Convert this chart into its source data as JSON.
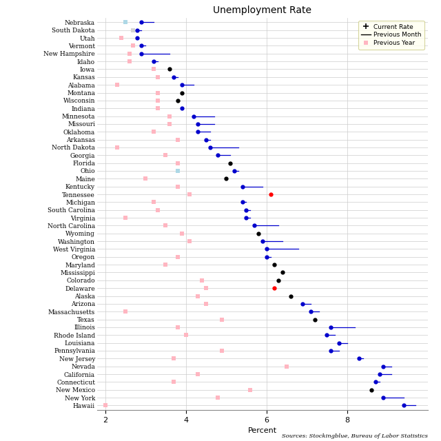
{
  "title": "Unemployment Rate",
  "xlabel": "Percent",
  "source": "Sources: Stockingblue, Bureau of Labor Statistics",
  "states": [
    "Nebraska",
    "South Dakota",
    "Utah",
    "Vermont",
    "New Hampshire",
    "Idaho",
    "Iowa",
    "Kansas",
    "Alabama",
    "Montana",
    "Wisconsin",
    "Indiana",
    "Minnesota",
    "Missouri",
    "Oklahoma",
    "Arkansas",
    "North Dakota",
    "Georgia",
    "Florida",
    "Ohio",
    "Maine",
    "Kentucky",
    "Tennessee",
    "Michigan",
    "South Carolina",
    "Virginia",
    "North Carolina",
    "Wyoming",
    "Washington",
    "West Virginia",
    "Oregon",
    "Maryland",
    "Mississippi",
    "Colorado",
    "Delaware",
    "Alaska",
    "Arizona",
    "Massachusetts",
    "Texas",
    "Illinois",
    "Rhode Island",
    "Louisiana",
    "Pennsylvania",
    "New Jersey",
    "Nevada",
    "California",
    "Connecticut",
    "New Mexico",
    "New York",
    "Hawaii"
  ],
  "current_rate": [
    2.9,
    2.8,
    2.8,
    2.9,
    2.9,
    3.2,
    3.6,
    3.7,
    3.9,
    3.9,
    3.8,
    3.9,
    4.2,
    4.3,
    4.3,
    4.5,
    4.6,
    4.8,
    5.1,
    5.2,
    5.0,
    5.4,
    6.1,
    5.4,
    5.5,
    5.5,
    5.7,
    5.8,
    5.9,
    6.0,
    6.0,
    6.2,
    6.4,
    6.3,
    6.2,
    6.6,
    6.9,
    7.1,
    7.2,
    7.6,
    7.5,
    7.8,
    7.6,
    8.3,
    8.9,
    8.8,
    8.7,
    8.6,
    8.9,
    9.4
  ],
  "prev_month": [
    3.2,
    2.9,
    2.8,
    3.0,
    3.6,
    3.3,
    3.6,
    3.8,
    4.2,
    3.9,
    3.8,
    3.9,
    4.7,
    4.7,
    4.6,
    4.6,
    5.3,
    5.1,
    5.1,
    5.3,
    5.0,
    5.9,
    6.1,
    5.5,
    5.6,
    5.6,
    6.3,
    5.8,
    6.4,
    6.8,
    6.1,
    6.2,
    6.4,
    6.3,
    6.2,
    6.6,
    7.1,
    7.3,
    7.2,
    8.2,
    7.7,
    8.0,
    7.8,
    8.4,
    9.1,
    9.1,
    8.8,
    8.6,
    9.4,
    9.7
  ],
  "prev_year": [
    2.5,
    2.7,
    2.4,
    2.7,
    2.6,
    2.6,
    3.2,
    3.3,
    2.3,
    3.3,
    3.3,
    3.3,
    3.6,
    3.6,
    3.2,
    3.8,
    2.3,
    3.5,
    3.8,
    3.8,
    3.0,
    3.8,
    4.1,
    3.2,
    3.3,
    2.5,
    3.5,
    3.9,
    4.1,
    null,
    3.8,
    3.5,
    null,
    4.4,
    4.5,
    4.3,
    4.5,
    2.5,
    4.9,
    3.8,
    4.0,
    null,
    4.9,
    3.7,
    6.5,
    4.3,
    3.7,
    5.6,
    4.8,
    2.0
  ],
  "prev_year_color": [
    "#add8e6",
    "#d3d3d3",
    "#ffb6c1",
    "#ffb6c1",
    "#ffb6c1",
    "#ffb6c1",
    "#ffb6c1",
    "#ffb6c1",
    "#ffb6c1",
    "#ffb6c1",
    "#ffb6c1",
    "#ffb6c1",
    "#ffb6c1",
    "#ffb6c1",
    "#ffb6c1",
    "#ffb6c1",
    "#ffb6c1",
    "#ffb6c1",
    "#ffb6c1",
    "#add8e6",
    "#ffb6c1",
    "#ffb6c1",
    "#ffb6c1",
    "#ffb6c1",
    "#ffb6c1",
    "#ffb6c1",
    "#ffb6c1",
    "#ffb6c1",
    "#ffb6c1",
    "#ffb6c1",
    "#ffb6c1",
    "#ffb6c1",
    "#ffb6c1",
    "#ffb6c1",
    "#ffb6c1",
    "#ffb6c1",
    "#ffb6c1",
    "#ffb6c1",
    "#ffb6c1",
    "#ffb6c1",
    "#ffb6c1",
    "#ffb6c1",
    "#ffb6c1",
    "#ffb6c1",
    "#ffb6c1",
    "#ffb6c1",
    "#ffb6c1",
    "#ffb6c1",
    "#ffb6c1",
    "#ffb6c1"
  ],
  "dot_color": [
    "blue",
    "blue",
    "blue",
    "blue",
    "blue",
    "blue",
    "black",
    "blue",
    "blue",
    "black",
    "black",
    "blue",
    "blue",
    "blue",
    "blue",
    "blue",
    "blue",
    "blue",
    "black",
    "blue",
    "black",
    "blue",
    "red",
    "blue",
    "blue",
    "blue",
    "blue",
    "black",
    "blue",
    "blue",
    "blue",
    "black",
    "black",
    "black",
    "red",
    "black",
    "blue",
    "blue",
    "black",
    "blue",
    "blue",
    "blue",
    "blue",
    "blue",
    "blue",
    "blue",
    "blue",
    "black",
    "blue",
    "blue"
  ],
  "xlim": [
    1.8,
    10.0
  ],
  "bg_color": "#ffffff",
  "grid_color": "#cccccc",
  "pink_color": "#ffb6c1",
  "blue_color": "#0000cc",
  "legend_bg": "#fffff0",
  "legend_edge": "#cccc88"
}
